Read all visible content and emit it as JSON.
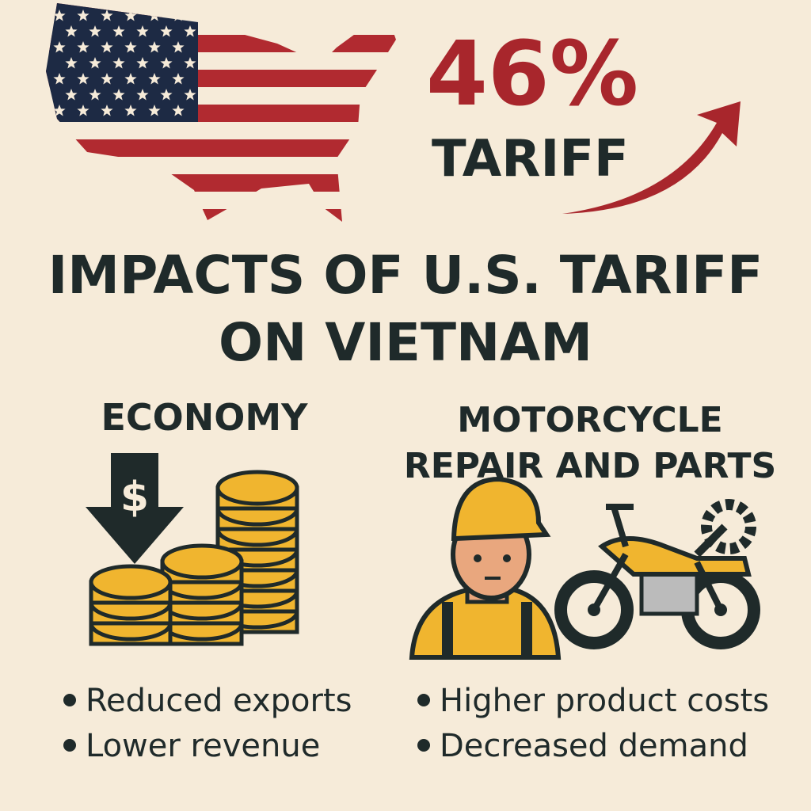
{
  "headline": {
    "percent": "46%",
    "label": "TARIFF"
  },
  "title": {
    "lines": [
      "IMPACTS OF U.S. TARIFF",
      "ON VIETNAM"
    ]
  },
  "economy": {
    "heading": "ECONOMY",
    "icon_symbol": "$",
    "bullets": [
      "Reduced exports",
      "Lower revenue"
    ]
  },
  "motorcycle": {
    "heading_lines": [
      "MOTORCYCLE",
      "REPAIR AND PARTS"
    ],
    "bullets": [
      "Higher product costs",
      "Decreased demand"
    ]
  }
}
